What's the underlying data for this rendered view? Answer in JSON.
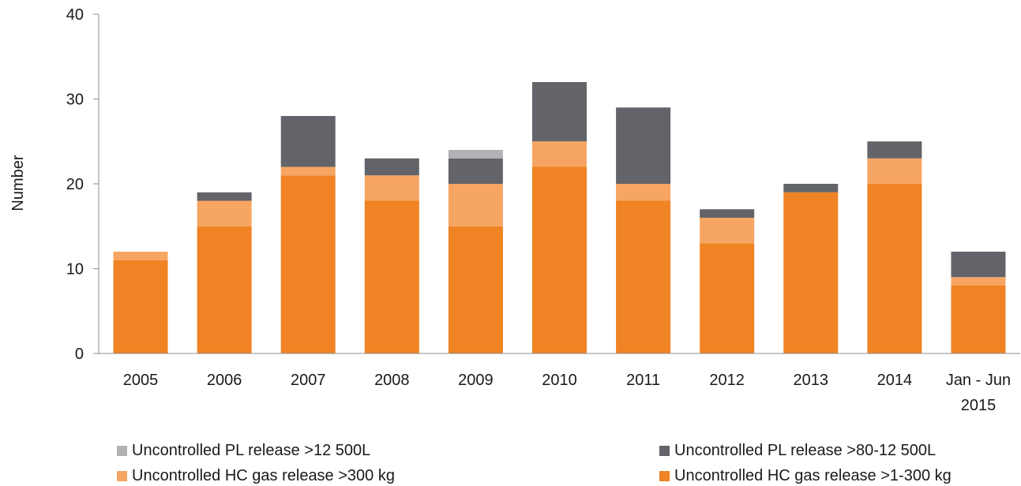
{
  "chart_data": {
    "type": "bar",
    "stacked": true,
    "title": "",
    "xlabel": "",
    "ylabel": "Number",
    "ylim": [
      0,
      40
    ],
    "yticks": [
      0,
      10,
      20,
      30,
      40
    ],
    "grid": false,
    "legend_position": "bottom",
    "categories": [
      [
        "2005"
      ],
      [
        "2006"
      ],
      [
        "2007"
      ],
      [
        "2008"
      ],
      [
        "2009"
      ],
      [
        "2010"
      ],
      [
        "2011"
      ],
      [
        "2012"
      ],
      [
        "2013"
      ],
      [
        "2014"
      ],
      [
        "Jan - Jun",
        "2015"
      ]
    ],
    "series": [
      {
        "name": "Uncontrolled HC gas release >1-300 kg",
        "color": "#f08323",
        "values": [
          11,
          15,
          21,
          18,
          15,
          22,
          18,
          13,
          19,
          20,
          8
        ]
      },
      {
        "name": "Uncontrolled HC gas release >300 kg",
        "color": "#f7a562",
        "values": [
          1,
          3,
          1,
          3,
          5,
          3,
          2,
          3,
          0,
          3,
          1
        ]
      },
      {
        "name": "Uncontrolled PL release >80-12 500L",
        "color": "#636469",
        "values": [
          0,
          1,
          6,
          2,
          3,
          7,
          9,
          1,
          1,
          2,
          3
        ]
      },
      {
        "name": "Uncontrolled PL release >12 500L",
        "color": "#b1b2b4",
        "values": [
          0,
          0,
          0,
          0,
          1,
          0,
          0,
          0,
          0,
          0,
          0
        ]
      }
    ]
  },
  "legend": {
    "items": [
      {
        "label": "Uncontrolled PL release >12 500L",
        "color": "#b1b2b4"
      },
      {
        "label": "Uncontrolled PL release >80-12 500L",
        "color": "#636469"
      },
      {
        "label": "Uncontrolled HC gas release >300 kg",
        "color": "#f7a562"
      },
      {
        "label": "Uncontrolled HC gas release >1-300 kg",
        "color": "#f08323"
      }
    ]
  }
}
